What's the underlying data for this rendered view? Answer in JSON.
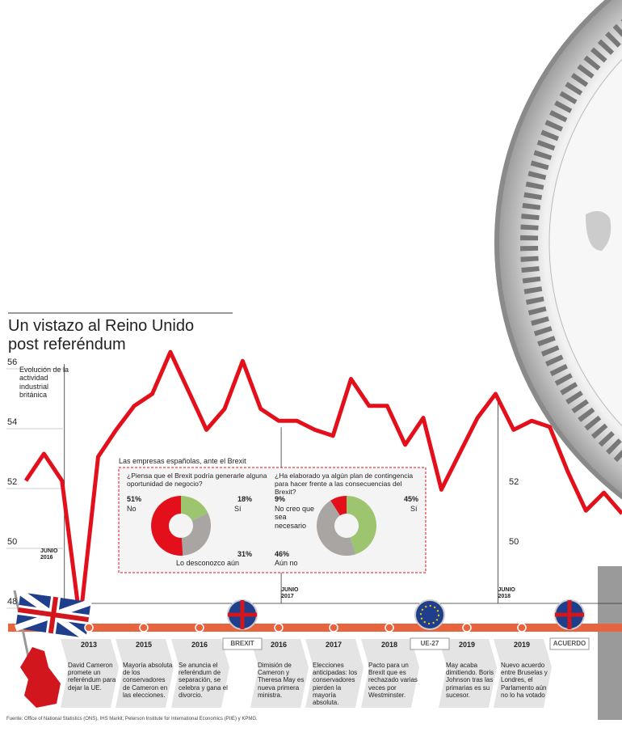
{
  "title": "Un vistazo al Reino Unido post referéndum",
  "chart_data": [
    {
      "type": "line",
      "y_label": "Evolución de la actividad industrial británica",
      "color": "#e3101c",
      "categories": [
        null,
        null,
        "JUNIO 2016",
        null,
        null,
        null,
        null,
        null,
        null,
        null,
        null,
        null,
        null,
        null,
        "JUNIO 2017",
        null,
        null,
        null,
        null,
        null,
        null,
        null,
        null,
        null,
        null,
        null,
        "JUNIO 2018",
        null,
        null,
        null,
        null,
        null,
        null,
        null
      ],
      "values": [
        52.1,
        53.0,
        52.1,
        47.4,
        52.9,
        53.8,
        54.6,
        55.0,
        56.4,
        55.1,
        53.8,
        54.5,
        56.1,
        54.5,
        54.1,
        54.1,
        53.8,
        53.6,
        55.5,
        54.6,
        54.6,
        53.3,
        54.2,
        51.8,
        53.0,
        54.2,
        55.0,
        53.8,
        54.1,
        53.9,
        52.4,
        51.1,
        51.7,
        51.0
      ],
      "ylim": [
        48,
        56
      ],
      "yticks": [
        48,
        50,
        52,
        54,
        56
      ],
      "inner_yticks": [
        52,
        50
      ]
    },
    {
      "type": "pie",
      "group_title": "Las empresas españolas, ante el Brexit",
      "title": "¿Piensa que el Brexit podría generarle alguna oportunidad de negocio?",
      "categories": [
        "Sí",
        "Lo desconozco aún",
        "No"
      ],
      "values": [
        18,
        31,
        51
      ],
      "value_labels": [
        "18%",
        "31%",
        "51%"
      ],
      "colors": [
        "#9dc56f",
        "#a8a5a2",
        "#e3101c"
      ]
    },
    {
      "type": "pie",
      "title": "¿Ha elaborado ya algún plan de contingencia para hacer frente a las consecuencias del Brexit?",
      "categories": [
        "Sí",
        "Aún no",
        "No creo que sea necesario"
      ],
      "values": [
        45,
        46,
        9
      ],
      "value_labels": [
        "45%",
        "46%",
        "9%"
      ],
      "colors": [
        "#9dc56f",
        "#a8a5a2",
        "#e3101c"
      ]
    }
  ],
  "timeline": [
    {
      "year": "2013",
      "text": "David Cameron promete un referéndum para dejar la UE."
    },
    {
      "year": "2015",
      "text": "Mayoría absoluta de los conservadores de Cameron en las elecciones."
    },
    {
      "year": "2016",
      "text": "Se anuncia el referéndum de separación, se celebra y gana el divorcio."
    },
    {
      "year": "2016",
      "text": "Dimisión de Cameron y Theresa May es nueva primera ministra."
    },
    {
      "year": "2017",
      "text": "Elecciones anticipadas: los conservadores pierden la mayoría absoluta."
    },
    {
      "year": "2018",
      "text": "Pacto para un Brexit que es rechazado varias veces por Westminster."
    },
    {
      "year": "2019",
      "text": "May acaba dimitiendo. Boris Johnson tras las primarias es su sucesor."
    },
    {
      "year": "2019",
      "text": "Nuevo acuerdo entre Bruselas y Londres, el Parlamento aún no lo ha votado"
    }
  ],
  "badges": [
    "BREXIT",
    "UE-27",
    "ACUERDO"
  ],
  "source": "Fuente: Office of National Statistics (ONS), IHS Markit, Peterson Institute for International Economics (PIIE) y KPMG."
}
